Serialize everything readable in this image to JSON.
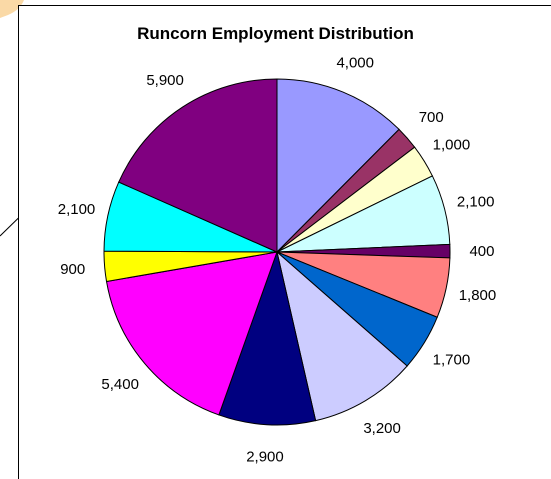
{
  "chart_data": {
    "type": "pie",
    "title": "Runcorn Employment Distribution",
    "values": [
      4000,
      700,
      1000,
      2100,
      400,
      1800,
      1700,
      3200,
      2900,
      5400,
      900,
      2100,
      5900
    ],
    "labels": [
      "4,000",
      "700",
      "1,000",
      "2,100",
      "400",
      "1,800",
      "1,700",
      "3,200",
      "2,900",
      "5,400",
      "900",
      "2,100",
      "5,900"
    ],
    "colors": [
      "#9999FF",
      "#993366",
      "#FFFFCC",
      "#CCFFFF",
      "#660066",
      "#FF8080",
      "#0066CC",
      "#CCCCFF",
      "#000080",
      "#FF00FF",
      "#FFFF00",
      "#00FFFF",
      "#800080"
    ],
    "start_angle_deg": 0,
    "direction": "clockwise",
    "legend": "none"
  }
}
